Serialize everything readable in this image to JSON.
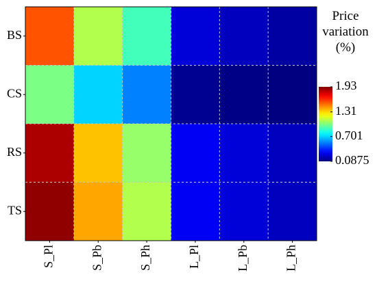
{
  "chart_data": {
    "type": "heatmap",
    "x_categories": [
      "S_Pl",
      "S_Pb",
      "S_Ph",
      "L_Pl",
      "L_Pb",
      "L_Ph"
    ],
    "y_categories": [
      "BS",
      "CS",
      "RS",
      "TS"
    ],
    "values": [
      [
        1.55,
        1.1,
        0.9,
        0.25,
        0.2,
        0.15
      ],
      [
        1.0,
        0.7,
        0.55,
        0.12,
        0.1,
        0.09
      ],
      [
        1.85,
        1.35,
        1.05,
        0.3,
        0.25,
        0.2
      ],
      [
        1.9,
        1.4,
        1.1,
        0.3,
        0.25,
        0.2
      ]
    ],
    "colormap": "jet",
    "colorbar_title": "Price variation (%)",
    "clim": [
      0.0875,
      1.93
    ],
    "colorbar_ticks": [
      1.93,
      1.31,
      0.701,
      0.0875
    ]
  }
}
